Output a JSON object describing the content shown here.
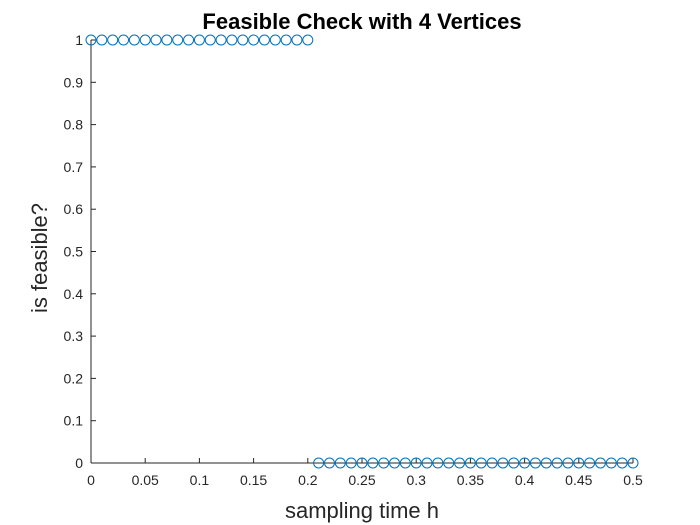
{
  "chart_data": {
    "type": "scatter",
    "title": "Feasible Check with 4 Vertices",
    "xlabel": "sampling time h",
    "ylabel": "is feasible?",
    "xlim": [
      0,
      0.5
    ],
    "ylim": [
      0,
      1
    ],
    "xticks": [
      "0",
      "0.05",
      "0.1",
      "0.15",
      "0.2",
      "0.25",
      "0.3",
      "0.35",
      "0.4",
      "0.45",
      "0.5"
    ],
    "yticks": [
      "0",
      "0.1",
      "0.2",
      "0.3",
      "0.4",
      "0.5",
      "0.6",
      "0.7",
      "0.8",
      "0.9",
      "1"
    ],
    "grid": false,
    "marker": "circle",
    "marker_color": "#0072BD",
    "series": [
      {
        "x": [
          0,
          0.01,
          0.02,
          0.03,
          0.04,
          0.05,
          0.06,
          0.07,
          0.08,
          0.09,
          0.1,
          0.11,
          0.12,
          0.13,
          0.14,
          0.15,
          0.16,
          0.17,
          0.18,
          0.19,
          0.2,
          0.21,
          0.22,
          0.23,
          0.24,
          0.25,
          0.26,
          0.27,
          0.28,
          0.29,
          0.3,
          0.31,
          0.32,
          0.33,
          0.34,
          0.35,
          0.36,
          0.37,
          0.38,
          0.39,
          0.4,
          0.41,
          0.42,
          0.43,
          0.44,
          0.45,
          0.46,
          0.47,
          0.48,
          0.49,
          0.5
        ],
        "y": [
          1,
          1,
          1,
          1,
          1,
          1,
          1,
          1,
          1,
          1,
          1,
          1,
          1,
          1,
          1,
          1,
          1,
          1,
          1,
          1,
          1,
          0,
          0,
          0,
          0,
          0,
          0,
          0,
          0,
          0,
          0,
          0,
          0,
          0,
          0,
          0,
          0,
          0,
          0,
          0,
          0,
          0,
          0,
          0,
          0,
          0,
          0,
          0,
          0,
          0,
          0
        ]
      }
    ]
  }
}
